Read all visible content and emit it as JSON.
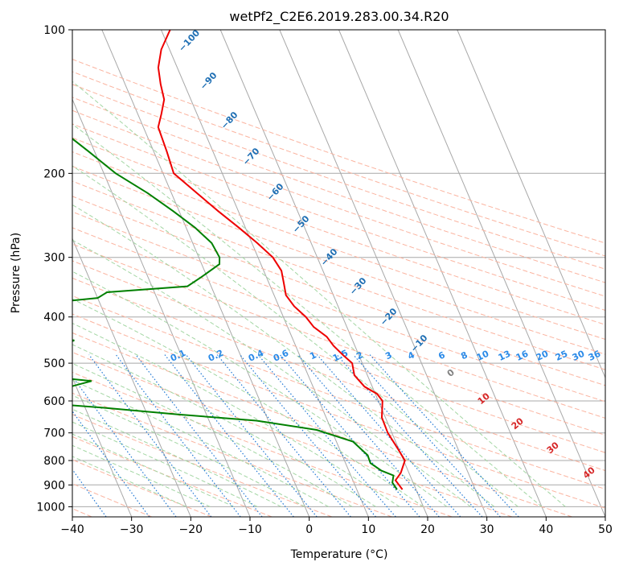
{
  "chart_data": {
    "type": "line",
    "title": "wetPf2_C2E6.2019.283.00.34.R20",
    "xlabel": "Temperature (°C)",
    "ylabel": "Pressure (hPa)",
    "xlim": [
      -40,
      50
    ],
    "ylim": [
      1050,
      100
    ],
    "y_scale": "log",
    "grid": true,
    "x_ticks": [
      "−40",
      "−30",
      "−20",
      "−10",
      "0",
      "10",
      "20",
      "30",
      "40",
      "50"
    ],
    "y_ticks": [
      "100",
      "200",
      "300",
      "400",
      "500",
      "600",
      "700",
      "800",
      "900",
      "1000"
    ],
    "colors": {
      "temperature": "#ee0000",
      "dewpoint": "#008000",
      "isotherm": "#a8a8a8",
      "dry_adiabat": "#fbb4a0",
      "moist_adiabat": "#a3d6a3",
      "mixing_ratio": "#1f77d4",
      "dry_label": "#d62728",
      "moist_label": "#1f6fb4",
      "mixing_label": "#2a8ae8"
    },
    "series": [
      {
        "key": "temperature",
        "p": [
          920,
          880,
          850,
          800,
          760,
          700,
          650,
          600,
          580,
          560,
          530,
          500,
          480,
          460,
          440,
          420,
          400,
          380,
          360,
          340,
          320,
          300,
          280,
          260,
          240,
          220,
          200,
          180,
          160,
          150,
          140,
          130,
          120,
          110,
          100
        ],
        "t": [
          17.7,
          17.2,
          18.6,
          20.2,
          19.9,
          19.3,
          19.4,
          20.7,
          20.3,
          18.7,
          17.8,
          18.3,
          17.3,
          16.4,
          15.9,
          14.4,
          13.8,
          12.6,
          12.0,
          12.5,
          13.0,
          12.5,
          10.9,
          8.9,
          6.6,
          4.3,
          1.8,
          2.2,
          2.5,
          4.0,
          5.5,
          6.0,
          6.8,
          8.6,
          11.5
        ]
      },
      {
        "key": "dewpoint",
        "p": [
          920,
          890,
          860,
          840,
          810,
          780,
          730,
          690,
          660,
          640,
          620,
          605,
          600,
          580,
          560,
          545,
          535,
          525,
          520,
          510,
          490,
          475,
          460,
          448,
          440,
          430,
          405,
          395,
          375,
          365,
          355,
          345,
          330,
          310,
          300,
          280,
          260,
          240,
          220,
          200,
          180,
          160,
          150,
          130,
          115,
          100
        ],
        "t": [
          16.8,
          16.5,
          17.2,
          15.5,
          14.2,
          14.3,
          12.8,
          7.5,
          -2.0,
          -15.0,
          -27.0,
          -38.0,
          -40.0,
          -40.0,
          -31.0,
          -27.0,
          -33.0,
          -40.0,
          -40.0,
          -40.0,
          -40.0,
          -40.0,
          -30.0,
          -27.0,
          -33.0,
          -40.0,
          -40.0,
          -40.0,
          -30.0,
          -20.0,
          -18.0,
          -4.0,
          -1.0,
          3.0,
          3.5,
          3.2,
          1.5,
          -1.0,
          -4.0,
          -8.0,
          -11.0,
          -14.5,
          -15.0,
          -12.5,
          -10.8,
          -10.0
        ]
      }
    ],
    "dry_adiabat_labels": [
      "−100",
      "−90",
      "−80",
      "−70",
      "−60",
      "−50",
      "−40",
      "−30",
      "−20",
      "−10",
      "0",
      "10",
      "20",
      "30",
      "40"
    ],
    "moist_adiabat_labels": [
      "−100",
      "−90",
      "−80",
      "−70",
      "−60",
      "−50",
      "−40",
      "−30",
      "−20",
      "−10",
      "0",
      "10",
      "20",
      "30",
      "40"
    ],
    "mixing_ratio_labels": [
      "0.1",
      "0.2",
      "0.4",
      "0.6",
      "1",
      "1.5",
      "2",
      "3",
      "4",
      "6",
      "8",
      "10",
      "13",
      "16",
      "20",
      "25",
      "30",
      "36"
    ]
  }
}
